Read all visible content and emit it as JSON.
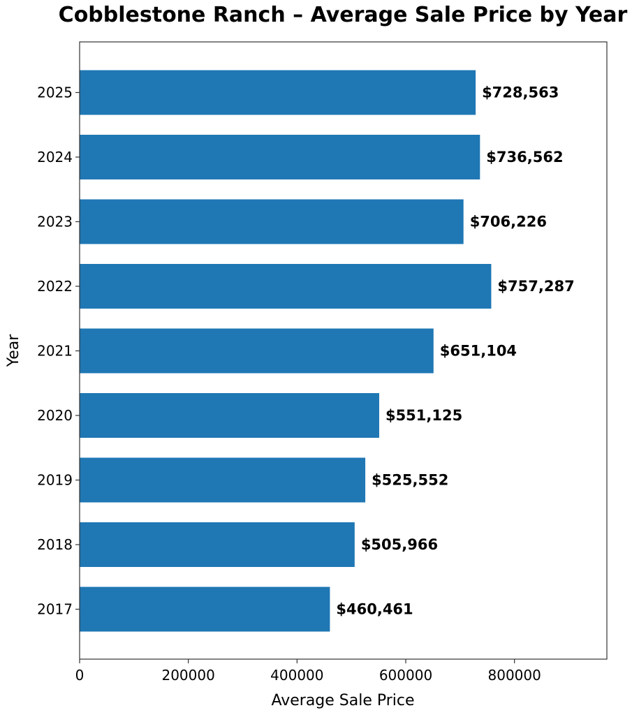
{
  "chart_data": {
    "type": "bar",
    "orientation": "horizontal",
    "title": "Cobblestone Ranch – Average Sale Price by Year",
    "xlabel": "Average Sale Price",
    "ylabel": "Year",
    "categories": [
      "2017",
      "2018",
      "2019",
      "2020",
      "2021",
      "2022",
      "2023",
      "2024",
      "2025"
    ],
    "values": [
      460461,
      505966,
      525552,
      551125,
      651104,
      757287,
      706226,
      736562,
      728563
    ],
    "data_labels": [
      "$460,461",
      "$505,966",
      "$525,552",
      "$551,125",
      "$651,104",
      "$757,287",
      "$706,226",
      "$736,562",
      "$728,563"
    ],
    "xlim": [
      0,
      970000
    ],
    "xticks": [
      0,
      200000,
      400000,
      600000,
      800000
    ],
    "xtick_labels": [
      "0",
      "200000",
      "400000",
      "600000",
      "800000"
    ],
    "grid": false,
    "legend": "none",
    "bar_color": "#1f77b4"
  }
}
